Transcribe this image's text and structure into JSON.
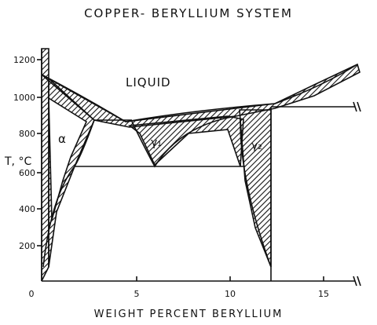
{
  "title": "COPPER- BERYLLIUM SYSTEM",
  "y_axis_label": "T, °C",
  "x_axis_label": "WEIGHT PERCENT BERYLLIUM",
  "y_ticks": [
    "200",
    "400",
    "600",
    "800",
    "1000",
    "1200"
  ],
  "x_ticks": [
    "0",
    "5",
    "10",
    "15"
  ],
  "regions": [
    "LIQUID",
    "α",
    "γ₁",
    "γ₂"
  ]
}
